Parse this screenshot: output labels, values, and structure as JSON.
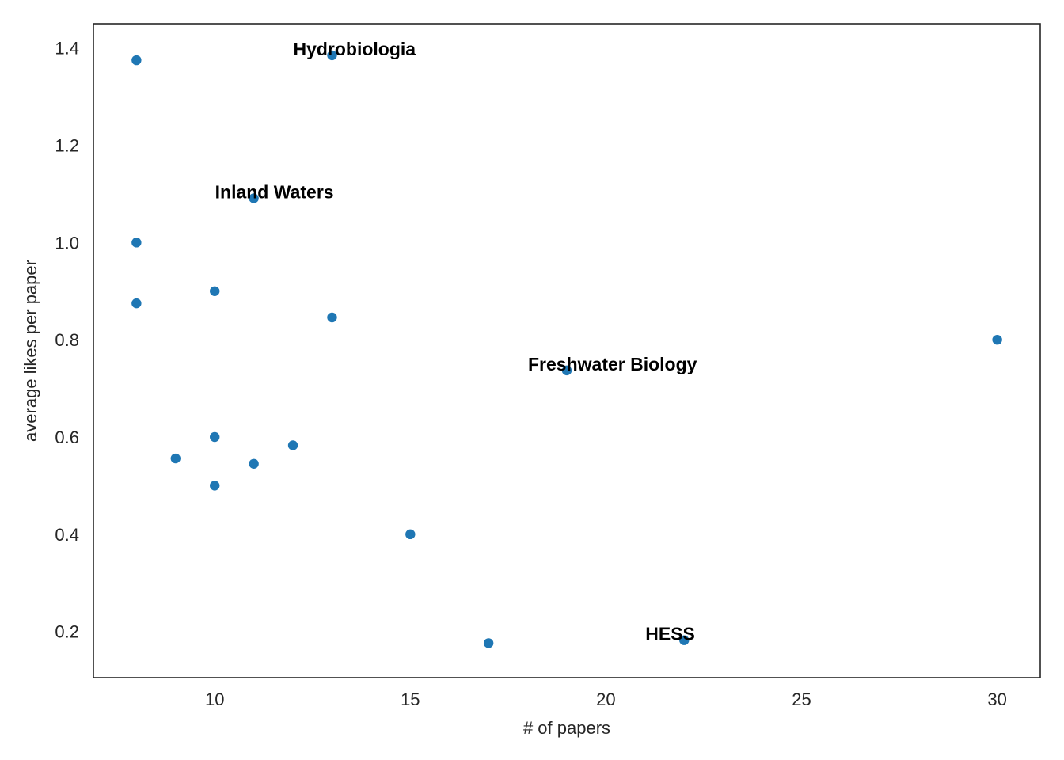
{
  "chart_data": {
    "type": "scatter",
    "title": "",
    "xlabel": "# of papers",
    "ylabel": "average likes per paper",
    "xlim": [
      6.9,
      31.1
    ],
    "ylim": [
      0.105,
      1.45
    ],
    "xticks": [
      10,
      15,
      20,
      25,
      30
    ],
    "yticks": [
      0.2,
      0.4,
      0.6,
      0.8,
      1.0,
      1.2,
      1.4
    ],
    "xtick_labels": [
      "10",
      "15",
      "20",
      "25",
      "30"
    ],
    "ytick_labels": [
      "0.2",
      "0.4",
      "0.6",
      "0.8",
      "1.0",
      "1.2",
      "1.4"
    ],
    "grid": false,
    "point_color": "#1f77b4",
    "points": [
      {
        "x": 8,
        "y": 1.375
      },
      {
        "x": 8,
        "y": 1.0
      },
      {
        "x": 8,
        "y": 0.875
      },
      {
        "x": 9,
        "y": 0.556
      },
      {
        "x": 10,
        "y": 0.9
      },
      {
        "x": 10,
        "y": 0.6
      },
      {
        "x": 10,
        "y": 0.5
      },
      {
        "x": 11,
        "y": 1.091
      },
      {
        "x": 11,
        "y": 0.545
      },
      {
        "x": 12,
        "y": 0.583
      },
      {
        "x": 13,
        "y": 1.385
      },
      {
        "x": 13,
        "y": 0.846
      },
      {
        "x": 15,
        "y": 0.4
      },
      {
        "x": 17,
        "y": 0.176
      },
      {
        "x": 19,
        "y": 0.737
      },
      {
        "x": 22,
        "y": 0.182
      },
      {
        "x": 30,
        "y": 0.8
      }
    ],
    "annotations": [
      {
        "text": "Hydrobiologia",
        "x": 13,
        "y": 1.385
      },
      {
        "text": "Inland Waters",
        "x": 11,
        "y": 1.091
      },
      {
        "text": "Freshwater Biology",
        "x": 19,
        "y": 0.737
      },
      {
        "text": "HESS",
        "x": 22,
        "y": 0.182
      }
    ]
  }
}
